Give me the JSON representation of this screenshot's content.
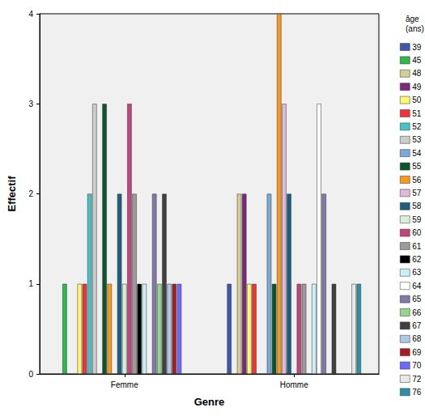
{
  "chart_data": {
    "type": "bar",
    "x_label": "Genre",
    "y_label": "Effectif",
    "legend_title": "âge (ans)",
    "categories": [
      "Femme",
      "Homme"
    ],
    "series": [
      {
        "name": "39",
        "color": "#3e58ac",
        "values": [
          0,
          1
        ]
      },
      {
        "name": "45",
        "color": "#2eb848",
        "values": [
          1,
          0
        ]
      },
      {
        "name": "48",
        "color": "#d3ce97",
        "values": [
          0,
          2
        ]
      },
      {
        "name": "49",
        "color": "#7c287d",
        "values": [
          0,
          2
        ]
      },
      {
        "name": "50",
        "color": "#fbf873",
        "values": [
          1,
          1
        ]
      },
      {
        "name": "51",
        "color": "#ef3338",
        "values": [
          1,
          1
        ]
      },
      {
        "name": "52",
        "color": "#48c2c5",
        "values": [
          2,
          0
        ]
      },
      {
        "name": "53",
        "color": "#cccccc",
        "values": [
          3,
          0
        ]
      },
      {
        "name": "54",
        "color": "#7aaad5",
        "values": [
          0,
          2
        ]
      },
      {
        "name": "55",
        "color": "#0a562c",
        "values": [
          3,
          1
        ]
      },
      {
        "name": "56",
        "color": "#f8981d",
        "values": [
          1,
          4
        ]
      },
      {
        "name": "57",
        "color": "#ddbad7",
        "values": [
          0,
          3
        ]
      },
      {
        "name": "58",
        "color": "#1c5f7e",
        "values": [
          2,
          2
        ]
      },
      {
        "name": "59",
        "color": "#d9efd9",
        "values": [
          1,
          0
        ]
      },
      {
        "name": "60",
        "color": "#c0467b",
        "values": [
          3,
          1
        ]
      },
      {
        "name": "61",
        "color": "#9b9b9b",
        "values": [
          2,
          1
        ]
      },
      {
        "name": "62",
        "color": "#000000",
        "values": [
          1,
          0
        ]
      },
      {
        "name": "63",
        "color": "#c9f1f5",
        "values": [
          1,
          1
        ]
      },
      {
        "name": "64",
        "color": "#ffffff",
        "values": [
          0,
          3
        ]
      },
      {
        "name": "65",
        "color": "#8279a8",
        "values": [
          2,
          2
        ]
      },
      {
        "name": "66",
        "color": "#93d68c",
        "values": [
          1,
          0
        ]
      },
      {
        "name": "67",
        "color": "#404040",
        "values": [
          2,
          1
        ]
      },
      {
        "name": "68",
        "color": "#adc8e8",
        "values": [
          1,
          0
        ]
      },
      {
        "name": "69",
        "color": "#a51e22",
        "values": [
          1,
          0
        ]
      },
      {
        "name": "70",
        "color": "#6a6aff",
        "values": [
          1,
          0
        ]
      },
      {
        "name": "72",
        "color": "#e8e8e8",
        "values": [
          0,
          1
        ]
      },
      {
        "name": "76",
        "color": "#2d8fa3",
        "values": [
          0,
          1
        ]
      }
    ],
    "ylim": [
      0,
      4
    ],
    "yticks": [
      0,
      1,
      2,
      3,
      4
    ],
    "grid": false,
    "legend": "right"
  }
}
